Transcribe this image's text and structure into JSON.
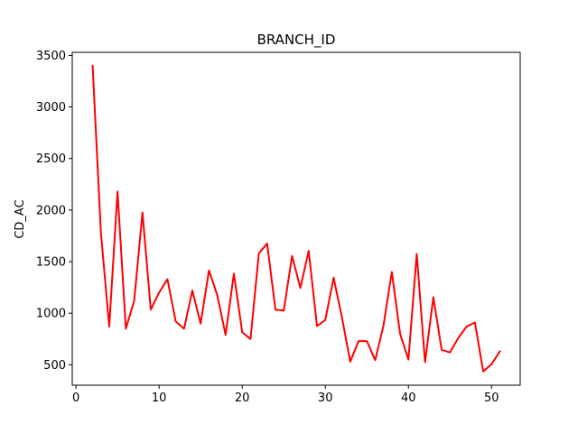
{
  "chart_data": {
    "type": "line",
    "title": "BRANCH_ID",
    "xlabel": "",
    "ylabel": "CD_AC",
    "xlim": [
      -0.45,
      53.45
    ],
    "ylim": [
      302,
      3530
    ],
    "x_ticks": [
      0,
      10,
      20,
      30,
      40,
      50
    ],
    "y_ticks": [
      500,
      1000,
      1500,
      2000,
      2500,
      3000,
      3500
    ],
    "grid": false,
    "series": [
      {
        "color": "#ff0000",
        "x": [
          2,
          3,
          4,
          5,
          6,
          7,
          8,
          9,
          10,
          11,
          12,
          13,
          14,
          15,
          16,
          17,
          18,
          19,
          20,
          21,
          22,
          23,
          24,
          25,
          26,
          27,
          28,
          29,
          30,
          31,
          32,
          33,
          34,
          35,
          36,
          37,
          38,
          39,
          40,
          41,
          42,
          43,
          44,
          45,
          46,
          47,
          48,
          49,
          50,
          51
        ],
        "y": [
          3400,
          1780,
          870,
          2180,
          850,
          1120,
          1975,
          1035,
          1200,
          1330,
          920,
          850,
          1220,
          900,
          1415,
          1175,
          790,
          1385,
          815,
          750,
          1580,
          1675,
          1035,
          1025,
          1555,
          1245,
          1605,
          875,
          935,
          1345,
          960,
          530,
          730,
          730,
          545,
          880,
          1400,
          800,
          550,
          1575,
          525,
          1155,
          645,
          620,
          760,
          870,
          910,
          435,
          505,
          630
        ]
      }
    ]
  }
}
